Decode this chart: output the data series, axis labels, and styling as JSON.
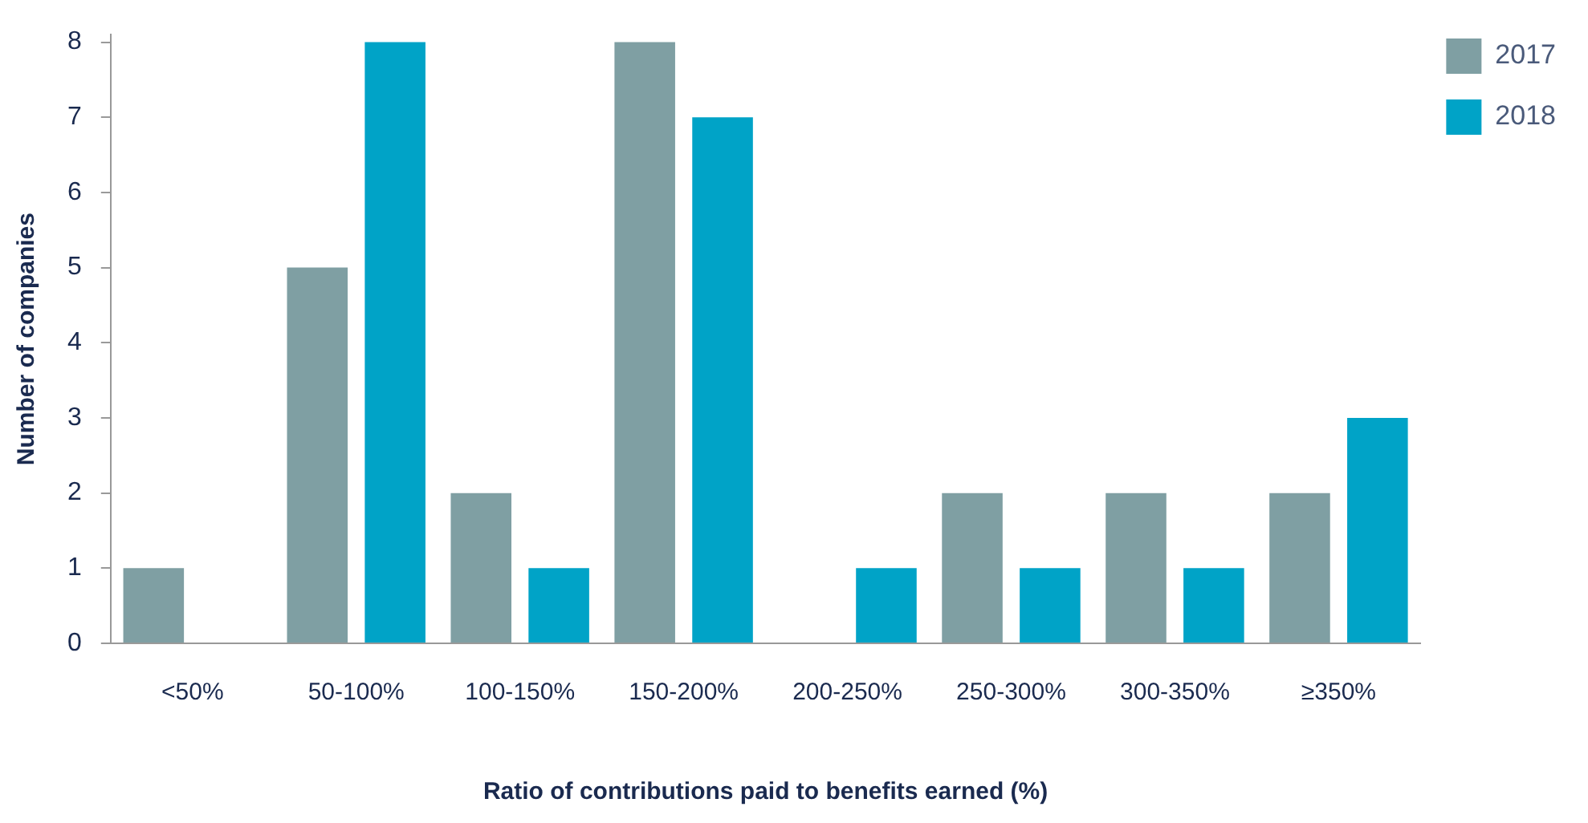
{
  "chart_data": {
    "type": "bar",
    "xlabel": "Ratio of contributions paid to benefits earned (%)",
    "ylabel": "Number of companies",
    "categories": [
      "<50%",
      "50-100%",
      "100-150%",
      "150-200%",
      "200-250%",
      "250-300%",
      "300-350%",
      "≥350%"
    ],
    "series": [
      {
        "name": "2017",
        "color": "#7f9fa3",
        "values": [
          1,
          5,
          2,
          8,
          0,
          2,
          2,
          2
        ]
      },
      {
        "name": "2018",
        "color": "#00a3c7",
        "values": [
          0,
          8,
          1,
          7,
          1,
          1,
          1,
          3
        ]
      }
    ],
    "ylim": [
      0,
      8.1
    ],
    "yticks": [
      0,
      1,
      2,
      3,
      4,
      5,
      6,
      7,
      8
    ],
    "grid": false,
    "legend": "top right"
  }
}
